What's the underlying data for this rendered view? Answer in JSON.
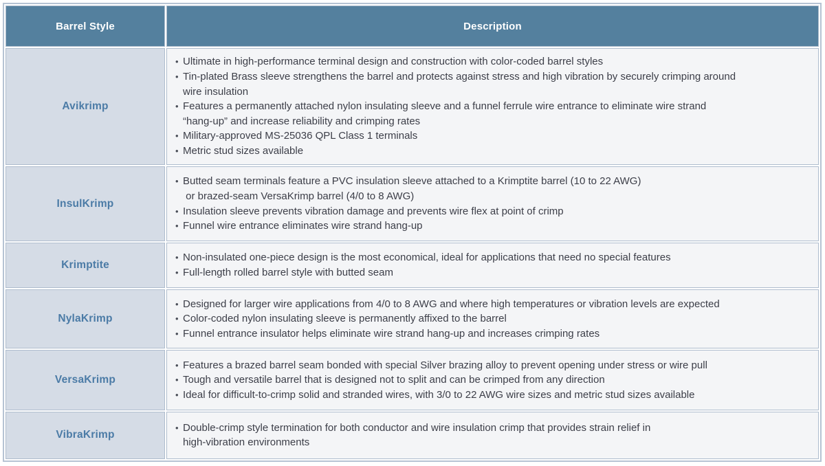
{
  "colors": {
    "header_bg": "#54809e",
    "header_text": "#ffffff",
    "style_cell_bg": "#d5dce6",
    "style_cell_text": "#4b7ba6",
    "desc_cell_bg": "#f4f5f7",
    "desc_cell_text": "#3c3e48",
    "cell_border": "#aebccd",
    "outer_border": "#b6c3d3",
    "bullet_color": "#4a4e58"
  },
  "table": {
    "headers": [
      "Barrel Style",
      "Description"
    ],
    "rows": [
      {
        "style": "Avikrimp",
        "bullets": [
          "Ultimate in high-performance terminal design and construction with color-coded barrel styles",
          "Tin-plated Brass sleeve strengthens the barrel and protects against stress and high vibration by securely crimping around\nwire insulation",
          "Features a permanently attached nylon insulating sleeve and a funnel ferrule wire entrance to eliminate wire strand\n“hang-up” and increase reliability and crimping rates",
          "Military-approved MS-25036 QPL Class 1 terminals",
          "Metric stud sizes available"
        ]
      },
      {
        "style": "InsulKrimp",
        "bullets": [
          "Butted seam terminals feature a PVC insulation sleeve attached to a Krimptite barrel (10 to 22 AWG)\n or brazed-seam VersaKrimp barrel (4/0 to 8 AWG)",
          "Insulation sleeve prevents vibration damage and prevents wire flex at point of crimp",
          "Funnel wire entrance eliminates wire strand hang-up"
        ]
      },
      {
        "style": "Krimptite",
        "bullets": [
          "Non-insulated one-piece design is the most economical, ideal for applications that need no special features",
          "Full-length rolled barrel style with butted seam"
        ]
      },
      {
        "style": "NylaKrimp",
        "bullets": [
          "Designed for larger wire applications from 4/0 to 8 AWG and where high temperatures or vibration levels are expected",
          "Color-coded nylon insulating sleeve is permanently affixed to the barrel",
          "Funnel entrance insulator helps eliminate wire strand hang-up and increases crimping rates"
        ]
      },
      {
        "style": "VersaKrimp",
        "bullets": [
          "Features a brazed barrel seam bonded with special Silver brazing alloy to prevent opening under stress or wire pull",
          "Tough and versatile barrel that is designed not to split and can be crimped from any direction",
          "Ideal for difficult-to-crimp solid and stranded wires, with 3/0 to 22 AWG wire sizes and metric stud sizes available"
        ]
      },
      {
        "style": "VibraKrimp",
        "bullets": [
          "Double-crimp style termination for both conductor and wire insulation crimp that provides strain relief in\nhigh-vibration environments"
        ]
      }
    ]
  }
}
